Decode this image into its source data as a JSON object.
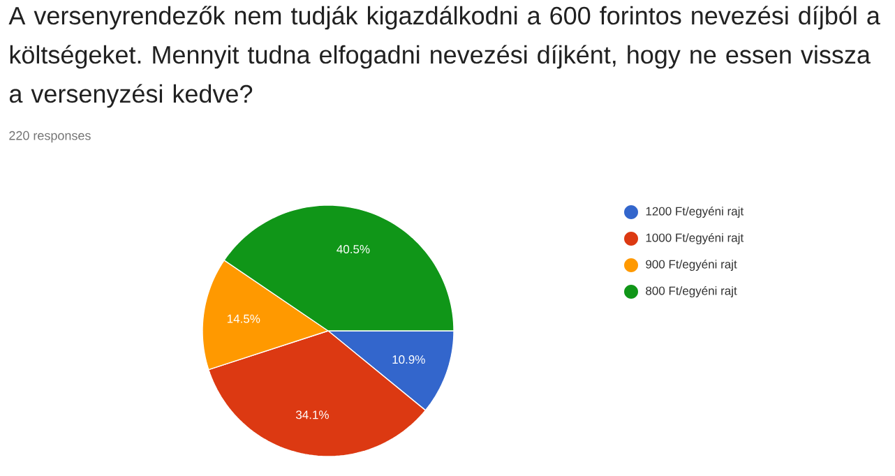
{
  "chart_data": {
    "type": "pie",
    "title": "A versenyrendezők nem tudják kigazdálkodni a 600 forintos nevezési díjból a költségeket. Mennyit tudna elfogadni nevezési díjként, hogy ne essen vissza a versenyzési kedve?",
    "subtitle": "220 responses",
    "categories": [
      "1200 Ft/egyéni rajt",
      "1000 Ft/egyéni rajt",
      "900 Ft/egyéni rajt",
      "800 Ft/egyéni rajt"
    ],
    "values": [
      10.9,
      34.1,
      14.5,
      40.5
    ],
    "value_labels": [
      "10.9%",
      "34.1%",
      "14.5%",
      "40.5%"
    ],
    "colors": [
      "#3366cc",
      "#dc3912",
      "#ff9900",
      "#109618"
    ],
    "legend": "right"
  }
}
